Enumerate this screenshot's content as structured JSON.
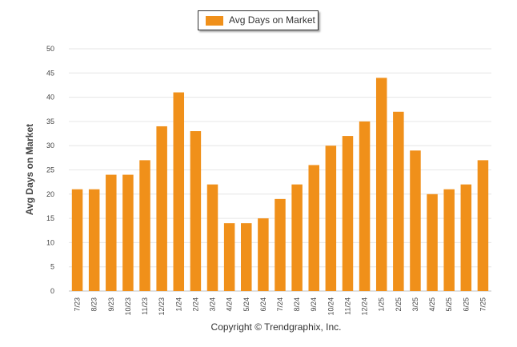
{
  "chart_data": {
    "type": "bar",
    "title": "",
    "ylabel": "Avg Days on Market",
    "xlabel": "",
    "ylim": [
      0,
      50
    ],
    "yticks": [
      0,
      5,
      10,
      15,
      20,
      25,
      30,
      35,
      40,
      45,
      50
    ],
    "grid": true,
    "legend_position": "top-center",
    "categories": [
      "7/23",
      "8/23",
      "9/23",
      "10/23",
      "11/23",
      "12/23",
      "1/24",
      "2/24",
      "3/24",
      "4/24",
      "5/24",
      "6/24",
      "7/24",
      "8/24",
      "9/24",
      "10/24",
      "11/24",
      "12/24",
      "1/25",
      "2/25",
      "3/25",
      "4/25",
      "5/25",
      "6/25",
      "7/25"
    ],
    "series": [
      {
        "name": "Avg Days on Market",
        "color": "#f0901a",
        "values": [
          21,
          21,
          24,
          24,
          27,
          34,
          41,
          33,
          22,
          14,
          14,
          15,
          19,
          22,
          26,
          30,
          32,
          35,
          44,
          37,
          29,
          20,
          21,
          22,
          27
        ]
      }
    ]
  },
  "footer": {
    "copyright": "Copyright © Trendgraphix, Inc."
  }
}
